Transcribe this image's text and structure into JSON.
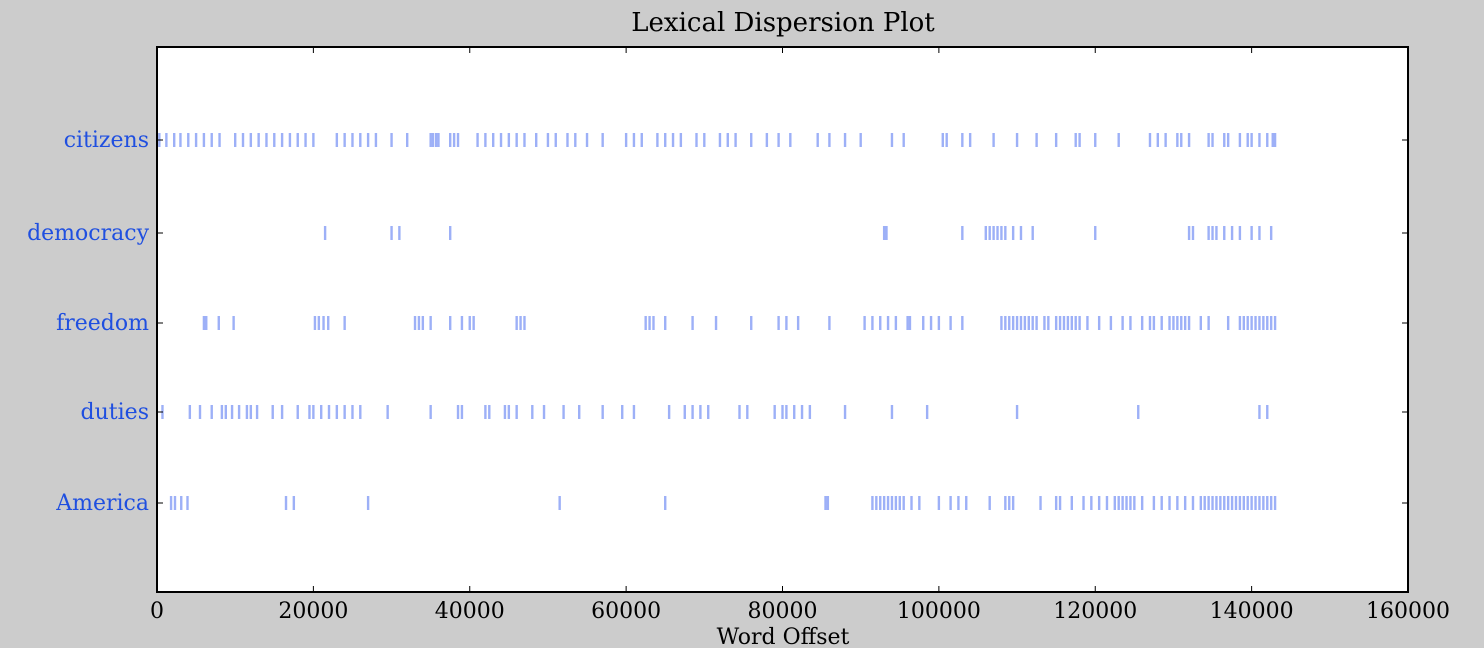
{
  "chart_data": {
    "type": "scatter",
    "title": "Lexical Dispersion Plot",
    "xlabel": "Word Offset",
    "ylabel": "",
    "xlim": [
      0,
      160000
    ],
    "x_ticks": [
      0,
      20000,
      40000,
      60000,
      80000,
      100000,
      120000,
      140000,
      160000
    ],
    "x_tick_labels": [
      "0",
      "20000",
      "40000",
      "60000",
      "80000",
      "100000",
      "120000",
      "140000",
      "160000"
    ],
    "grid": false,
    "marker": "|",
    "colors": {
      "marker": "#4d6ff0",
      "label": "#1f4fe0",
      "background": "#cccccc",
      "plot_bg": "#ffffff"
    },
    "series": [
      {
        "name": "citizens",
        "values": [
          300,
          1200,
          2200,
          3000,
          4000,
          5000,
          6000,
          7000,
          8000,
          10000,
          11000,
          12000,
          13000,
          14000,
          15000,
          16000,
          17000,
          18000,
          19000,
          20000,
          23000,
          24000,
          25000,
          26000,
          27000,
          28000,
          30000,
          32000,
          35000,
          35300,
          35700,
          36000,
          37500,
          38000,
          38500,
          41000,
          42000,
          43000,
          44000,
          45000,
          46000,
          47000,
          48500,
          50000,
          51000,
          52500,
          53500,
          55000,
          57000,
          60000,
          61000,
          62000,
          64000,
          65000,
          66000,
          67000,
          69000,
          70000,
          72000,
          73000,
          74000,
          76000,
          78000,
          79500,
          81000,
          84500,
          86000,
          88000,
          90000,
          94000,
          95500,
          100500,
          101000,
          103000,
          104000,
          107000,
          110000,
          112500,
          115000,
          117500,
          118000,
          120000,
          123000,
          127000,
          128000,
          129000,
          130500,
          131000,
          132000,
          134500,
          135000,
          136500,
          137000,
          138500,
          139500,
          140000,
          141000,
          142000,
          142700,
          143000
        ]
      },
      {
        "name": "democracy",
        "values": [
          21500,
          30000,
          31000,
          37500,
          93000,
          93300,
          103000,
          106000,
          106500,
          107000,
          107500,
          108000,
          108500,
          109500,
          110500,
          112000,
          120000,
          132000,
          132500,
          134500,
          135000,
          135500,
          136500,
          137500,
          138500,
          140000,
          141000,
          142500
        ]
      },
      {
        "name": "freedom",
        "values": [
          6000,
          6300,
          7900,
          9800,
          20200,
          20700,
          21300,
          21900,
          24000,
          33000,
          33500,
          34000,
          35000,
          37500,
          39000,
          40000,
          40500,
          46000,
          46500,
          47000,
          62500,
          63000,
          63500,
          65000,
          68500,
          71500,
          76000,
          79500,
          80500,
          82000,
          86000,
          90500,
          91500,
          92500,
          93500,
          94500,
          96000,
          96300,
          98000,
          99000,
          100000,
          101500,
          103000,
          108000,
          108500,
          109000,
          109500,
          110000,
          110500,
          111000,
          111500,
          112000,
          112500,
          113500,
          114000,
          115000,
          115500,
          116000,
          116500,
          117000,
          117500,
          118000,
          119000,
          120500,
          122000,
          123500,
          124500,
          126000,
          127000,
          127500,
          128500,
          129500,
          130000,
          130500,
          131000,
          131500,
          132000,
          133500,
          134500,
          137000,
          138500,
          139000,
          139500,
          140000,
          140500,
          141000,
          141500,
          142000,
          142500,
          143000
        ]
      },
      {
        "name": "duties",
        "values": [
          700,
          4200,
          5500,
          7000,
          8300,
          8800,
          9600,
          10500,
          11500,
          12000,
          12800,
          14800,
          16000,
          18000,
          19500,
          20000,
          21000,
          22000,
          23000,
          24000,
          25000,
          26000,
          29500,
          35000,
          38500,
          39000,
          42000,
          42500,
          44500,
          45000,
          46000,
          48000,
          49500,
          52000,
          54000,
          57000,
          59500,
          61000,
          65500,
          67500,
          68500,
          69500,
          70500,
          74500,
          75500,
          79000,
          80000,
          80500,
          81500,
          82500,
          83500,
          88000,
          94000,
          98500,
          110000,
          125500,
          141000,
          142000
        ]
      },
      {
        "name": "America",
        "values": [
          1800,
          2300,
          3100,
          3900,
          16500,
          17500,
          27000,
          51500,
          65000,
          85500,
          85800,
          91500,
          92000,
          92500,
          93000,
          93500,
          94000,
          94500,
          95000,
          95500,
          96500,
          97500,
          100000,
          101500,
          102500,
          103500,
          106500,
          108500,
          109000,
          109500,
          113000,
          115000,
          115500,
          117000,
          118500,
          119500,
          120500,
          121500,
          122500,
          123000,
          123500,
          124000,
          124500,
          125000,
          126000,
          127500,
          128500,
          129500,
          130500,
          131500,
          132500,
          133500,
          134000,
          134500,
          135000,
          135500,
          136000,
          136500,
          137000,
          137500,
          138000,
          138500,
          139000,
          139500,
          140000,
          140500,
          141000,
          141500,
          142000,
          142500,
          143000
        ]
      }
    ]
  }
}
